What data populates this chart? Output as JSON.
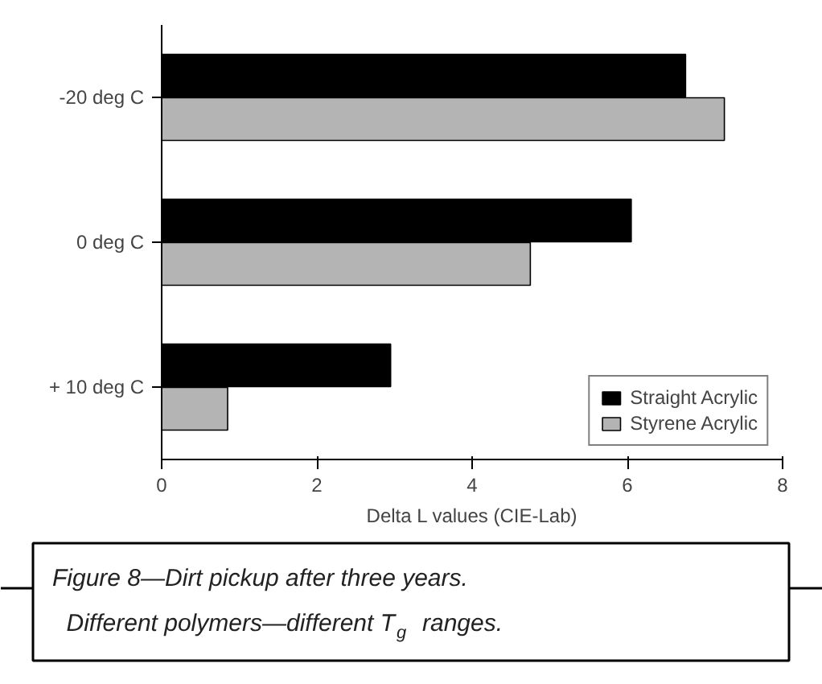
{
  "chart_data": {
    "type": "bar",
    "orientation": "horizontal",
    "categories": [
      "-20 deg C",
      "0 deg C",
      "+ 10 deg C"
    ],
    "series": [
      {
        "name": "Straight Acrylic",
        "color": "#000000",
        "values": [
          6.75,
          6.05,
          2.95
        ]
      },
      {
        "name": "Styrene Acrylic",
        "color": "#b4b4b4",
        "values": [
          7.25,
          4.75,
          0.85
        ]
      }
    ],
    "xlabel": "Delta L values (CIE-Lab)",
    "xlim": [
      0,
      8
    ],
    "xticks": [
      0,
      2,
      4,
      6,
      8
    ],
    "grid": false,
    "legend": "bottom right",
    "annotations": [
      "Figure 8—Dirt pickup after three years. Different polymers—different T$_{g}$ ranges."
    ]
  }
}
